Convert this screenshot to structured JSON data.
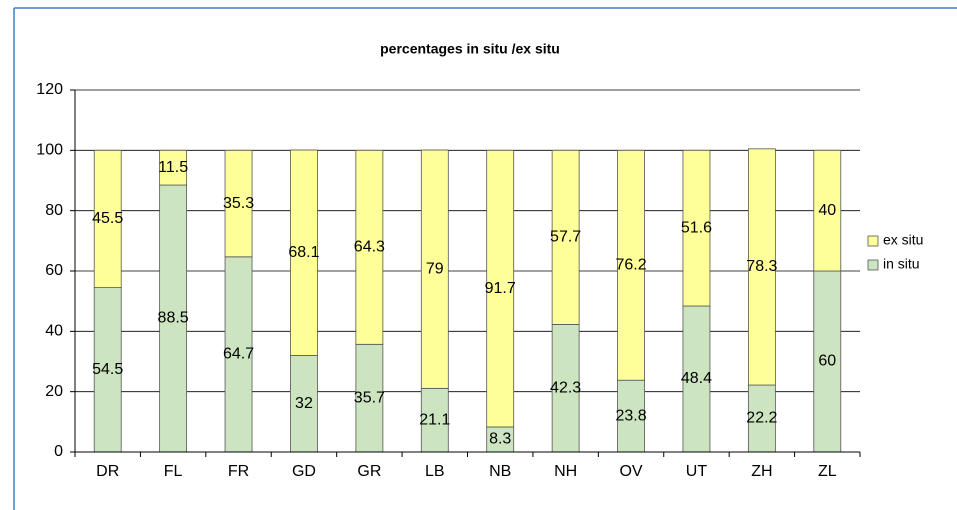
{
  "chart_data": {
    "type": "stacked_bar",
    "title": "percentages in situ /ex situ",
    "categories": [
      "DR",
      "FL",
      "FR",
      "GD",
      "GR",
      "LB",
      "NB",
      "NH",
      "OV",
      "UT",
      "ZH",
      "ZL"
    ],
    "series": [
      {
        "name": "in situ",
        "color": "#cce4c0",
        "values": [
          54.5,
          88.5,
          64.7,
          32,
          35.7,
          21.1,
          8.3,
          42.3,
          23.8,
          48.4,
          22.2,
          60
        ]
      },
      {
        "name": "ex situ",
        "color": "#ffff99",
        "values": [
          45.5,
          11.5,
          35.3,
          68.1,
          64.3,
          79,
          91.7,
          57.7,
          76.2,
          51.6,
          78.3,
          40
        ]
      }
    ],
    "ylim": [
      0,
      120
    ],
    "yticks": [
      0,
      20,
      40,
      60,
      80,
      100,
      120
    ],
    "grid": true,
    "legend": "right"
  }
}
